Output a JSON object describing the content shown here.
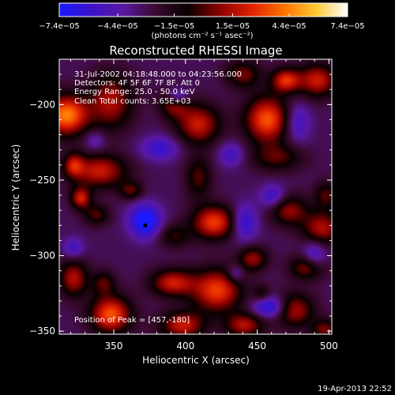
{
  "chart_data": {
    "type": "heatmap",
    "title": "Reconstructed RHESSI Image",
    "xlabel": "Heliocentric X (arcsec)",
    "ylabel": "Heliocentric Y (arcsec)",
    "xlim": [
      312,
      502
    ],
    "ylim": [
      -352,
      -170
    ],
    "x_ticks": [
      350,
      400,
      450,
      500
    ],
    "x_tick_labels": [
      "350",
      "400",
      "450",
      "500"
    ],
    "y_ticks": [
      -200,
      -250,
      -300,
      -350
    ],
    "y_tick_labels": [
      "−200",
      "−250",
      "−300",
      "−350"
    ],
    "colorbar": {
      "label": "(photons cm⁻² s⁻¹ asec⁻²)",
      "tick_values": [
        -7.4e-05,
        -4.4e-05,
        -1.5e-05,
        1.5e-05,
        4.4e-05,
        7.4e-05
      ],
      "tick_labels": [
        "−7.4e−05",
        "−4.4e−05",
        "−1.5e−05",
        "1.5e−05",
        "4.4e−05",
        "7.4e−05"
      ],
      "range": [
        -7.4e-05,
        7.4e-05
      ],
      "colors": [
        "#1a1aff",
        "#3c12c8",
        "#5a18a0",
        "#3a0a30",
        "#0a0000",
        "#8a0000",
        "#e02000",
        "#ff7000",
        "#ffc830",
        "#ffffff"
      ]
    },
    "annotations": [
      "31-Jul-2002 04:18:48.000 to 04:23:56.000",
      "Detectors: 4F 5F 6F 7F 8F, Att 0",
      "Energy Range: 25.0 - 50.0 keV",
      "Clean    Total counts: 3.65E+03"
    ],
    "peak_label": "Position of Peak = [457,-180]",
    "marker_point": [
      372,
      -280
    ],
    "timestamp": "19-Apr-2013 22:52",
    "field": {
      "base": -3e-05,
      "hot_spots": [
        [
          317,
          -207,
          15,
          13,
          7.4e-05
        ],
        [
          322,
          -240,
          7,
          8,
          4e-05
        ],
        [
          327,
          -262,
          7,
          7,
          5e-05
        ],
        [
          348,
          -198,
          15,
          18,
          4.5e-05
        ],
        [
          392,
          -199,
          10,
          9,
          4.5e-05
        ],
        [
          409,
          -213,
          15,
          13,
          5e-05
        ],
        [
          440,
          -180,
          12,
          9,
          3.5e-05
        ],
        [
          470,
          -184,
          10,
          8,
          5.5e-05
        ],
        [
          492,
          -184,
          13,
          11,
          5e-05
        ],
        [
          457,
          -210,
          15,
          15,
          6.5e-05
        ],
        [
          464,
          -235,
          18,
          9,
          3e-05
        ],
        [
          409,
          -248,
          9,
          14,
          3e-05
        ],
        [
          340,
          -244,
          19,
          11,
          5e-05
        ],
        [
          338,
          -273,
          9,
          7,
          3e-05
        ],
        [
          362,
          -257,
          8,
          6,
          3e-05
        ],
        [
          420,
          -278,
          15,
          11,
          6e-05
        ],
        [
          392,
          -287,
          11,
          8,
          2.5e-05
        ],
        [
          472,
          -270,
          13,
          10,
          4e-05
        ],
        [
          495,
          -282,
          13,
          11,
          4.5e-05
        ],
        [
          498,
          -260,
          8,
          9,
          3e-05
        ],
        [
          447,
          -302,
          10,
          8,
          4e-05
        ],
        [
          485,
          -308,
          12,
          8,
          4e-05
        ],
        [
          322,
          -315,
          10,
          12,
          4.5e-05
        ],
        [
          343,
          -318,
          8,
          8,
          3e-05
        ],
        [
          391,
          -318,
          15,
          9,
          5e-05
        ],
        [
          422,
          -323,
          17,
          14,
          6e-05
        ],
        [
          348,
          -339,
          14,
          12,
          6.5e-05
        ],
        [
          398,
          -346,
          15,
          9,
          5e-05
        ],
        [
          441,
          -346,
          13,
          8,
          4.5e-05
        ],
        [
          476,
          -336,
          13,
          11,
          4.5e-05
        ],
        [
          497,
          -349,
          9,
          7,
          3.5e-05
        ],
        [
          453,
          -325,
          6,
          6,
          2e-05
        ]
      ],
      "cold_spots": [
        [
          394,
          -195,
          8,
          6,
          -4.4e-05
        ],
        [
          372,
          -277,
          11,
          11,
          -5.2e-05
        ],
        [
          382,
          -229,
          13,
          8,
          -3e-05
        ],
        [
          441,
          -278,
          9,
          12,
          -3.5e-05
        ],
        [
          461,
          -261,
          9,
          8,
          -3e-05
        ],
        [
          459,
          -334,
          12,
          7,
          -4e-05
        ],
        [
          478,
          -212,
          9,
          13,
          -2.8e-05
        ],
        [
          322,
          -295,
          7,
          7,
          -2.5e-05
        ],
        [
          490,
          -300,
          8,
          10,
          -3e-05
        ],
        [
          435,
          -312,
          6,
          6,
          -2.5e-05
        ],
        [
          337,
          -224,
          7,
          7,
          -2e-05
        ],
        [
          432,
          -233,
          9,
          8,
          -2.5e-05
        ]
      ]
    }
  }
}
